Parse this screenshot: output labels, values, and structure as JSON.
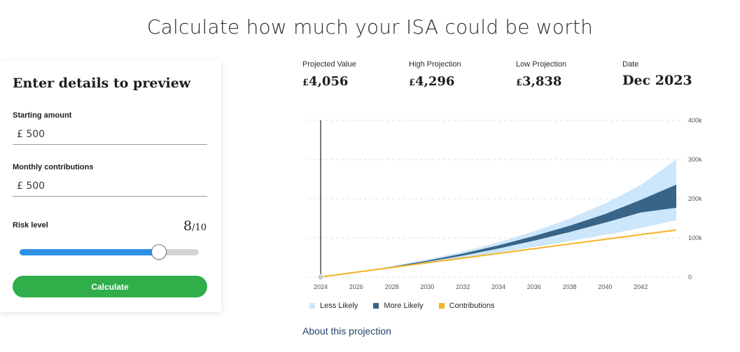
{
  "page": {
    "title": "Calculate how much your ISA could be worth"
  },
  "form": {
    "title": "Enter details to preview",
    "starting_amount": {
      "label": "Starting amount",
      "value": "£ 500"
    },
    "monthly_contributions": {
      "label": "Monthly contributions",
      "value": "£ 500"
    },
    "risk": {
      "label": "Risk level",
      "value": "8",
      "max_text": "/10",
      "level": 8,
      "max": 10
    },
    "calculate_label": "Calculate"
  },
  "stats": {
    "projected": {
      "label": "Projected Value",
      "currency": "£",
      "amount": "4,056"
    },
    "high": {
      "label": "High Projection",
      "currency": "£",
      "amount": "4,296"
    },
    "low": {
      "label": "Low Projection",
      "currency": "£",
      "amount": "3,838"
    },
    "date": {
      "label": "Date",
      "value": "Dec 2023"
    }
  },
  "legend": {
    "less_likely": "Less Likely",
    "more_likely": "More Likely",
    "contributions": "Contributions"
  },
  "about_link": "About this projection",
  "colors": {
    "accent_green": "#2fae4a",
    "slider_blue": "#2d8fe6",
    "less_likely": "#cce6fb",
    "more_likely": "#376487",
    "contributions": "#f5b324",
    "link": "#22446a"
  },
  "chart_data": {
    "type": "area",
    "x": [
      2024,
      2026,
      2028,
      2030,
      2032,
      2034,
      2036,
      2038,
      2040,
      2042,
      2044
    ],
    "xticks": [
      "2024",
      "2026",
      "2028",
      "2030",
      "2032",
      "2034",
      "2036",
      "2038",
      "2040",
      "2042"
    ],
    "yticks": [
      "0",
      "100k",
      "200k",
      "300k",
      "400k"
    ],
    "ylim": [
      0,
      400000
    ],
    "xlim": [
      2024,
      2044
    ],
    "marker_x": 2024,
    "series": [
      {
        "name": "Less Likely",
        "low": [
          500,
          12000,
          24000,
          36000,
          49000,
          63000,
          77000,
          92000,
          108000,
          125000,
          145000
        ],
        "high": [
          500,
          13000,
          28000,
          45000,
          65000,
          89000,
          117000,
          149000,
          188000,
          235000,
          300000
        ]
      },
      {
        "name": "More Likely",
        "low": [
          500,
          12000,
          25000,
          39000,
          55000,
          73000,
          93000,
          115000,
          139000,
          165000,
          177000
        ],
        "high": [
          500,
          12500,
          26500,
          42000,
          60000,
          81000,
          105000,
          131000,
          161000,
          197000,
          236000
        ]
      },
      {
        "name": "Contributions",
        "values": [
          500,
          12500,
          24500,
          36500,
          48500,
          60500,
          72500,
          84500,
          96500,
          108500,
          120000
        ]
      }
    ]
  }
}
